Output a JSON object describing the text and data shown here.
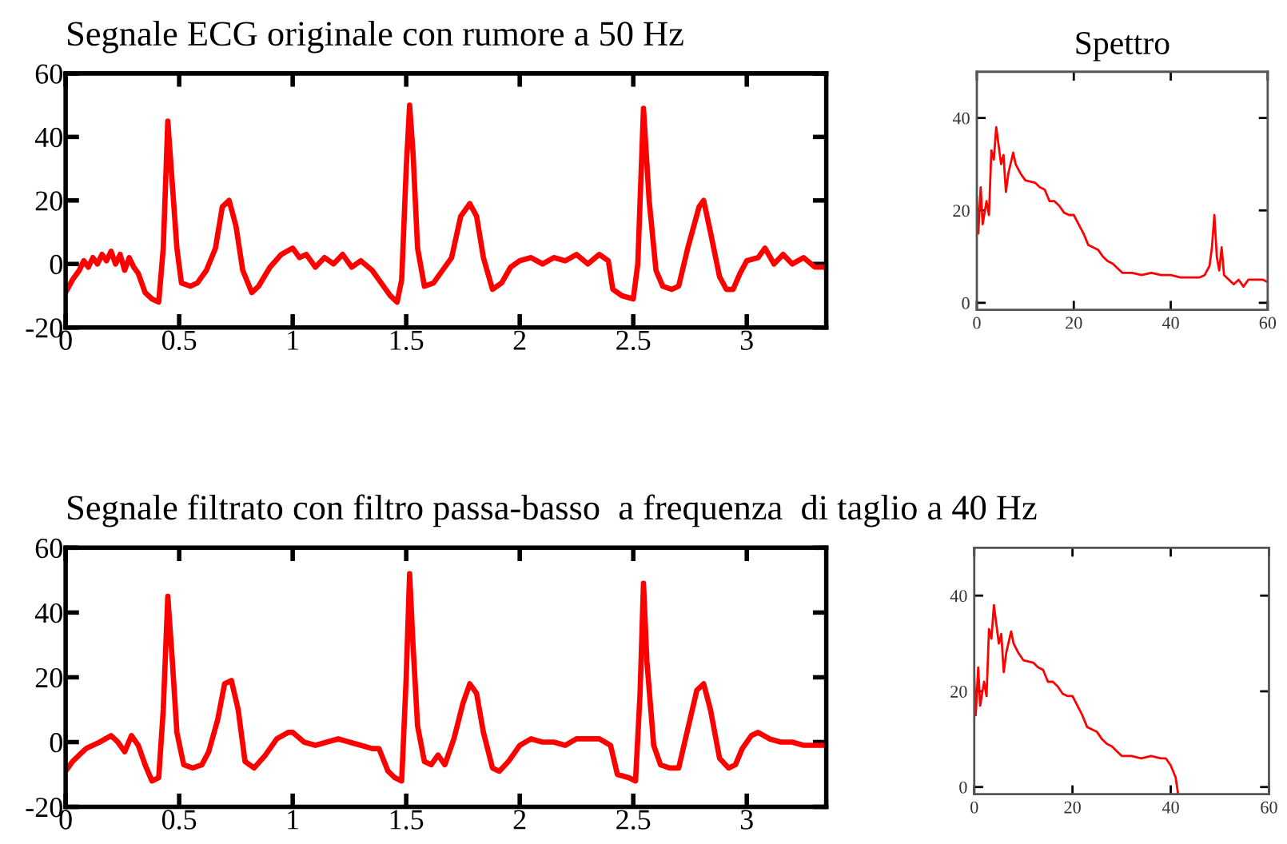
{
  "chart_data": [
    {
      "type": "line",
      "title": "Segnale ECG originale con rumore a 50 Hz",
      "xlim": [
        0,
        3.35
      ],
      "ylim": [
        -20,
        60
      ],
      "xticks": [
        0,
        0.5,
        1,
        1.5,
        2,
        2.5,
        3
      ],
      "yticks": [
        -20,
        0,
        20,
        40,
        60
      ],
      "grid": false,
      "legend": false,
      "marker": "none",
      "line_style": "solid",
      "series": [
        {
          "color": "#ff0000",
          "x": [
            0,
            0.03,
            0.06,
            0.08,
            0.1,
            0.12,
            0.14,
            0.16,
            0.18,
            0.2,
            0.22,
            0.24,
            0.26,
            0.28,
            0.3,
            0.32,
            0.35,
            0.38,
            0.41,
            0.43,
            0.45,
            0.47,
            0.49,
            0.51,
            0.55,
            0.58,
            0.62,
            0.66,
            0.69,
            0.72,
            0.75,
            0.78,
            0.82,
            0.85,
            0.9,
            0.95,
            1.0,
            1.03,
            1.06,
            1.1,
            1.14,
            1.18,
            1.22,
            1.26,
            1.3,
            1.35,
            1.4,
            1.43,
            1.46,
            1.48,
            1.5,
            1.515,
            1.53,
            1.55,
            1.58,
            1.62,
            1.65,
            1.7,
            1.74,
            1.78,
            1.81,
            1.84,
            1.88,
            1.92,
            1.96,
            2.0,
            2.05,
            2.1,
            2.15,
            2.2,
            2.25,
            2.3,
            2.35,
            2.39,
            2.41,
            2.45,
            2.5,
            2.52,
            2.545,
            2.57,
            2.6,
            2.63,
            2.67,
            2.7,
            2.74,
            2.79,
            2.81,
            2.84,
            2.88,
            2.91,
            2.94,
            2.97,
            3.0,
            3.05,
            3.08,
            3.12,
            3.16,
            3.2,
            3.25,
            3.3,
            3.35
          ],
          "values": [
            -9,
            -5,
            -2,
            1,
            -1,
            2,
            0,
            3,
            1,
            4,
            0,
            3,
            -2,
            2,
            -1,
            -3,
            -9,
            -11,
            -12,
            5,
            45,
            25,
            5,
            -6,
            -7,
            -6,
            -2,
            5,
            18,
            20,
            12,
            -2,
            -9,
            -7,
            -1,
            3,
            5,
            2,
            3,
            -1,
            2,
            0,
            3,
            -1,
            1,
            -2,
            -7,
            -10,
            -12,
            -5,
            30,
            50,
            35,
            5,
            -7,
            -6,
            -3,
            2,
            15,
            19,
            15,
            2,
            -8,
            -6,
            -1,
            1,
            2,
            0,
            2,
            1,
            3,
            0,
            3,
            1,
            -8,
            -10,
            -11,
            0,
            49,
            20,
            -2,
            -7,
            -8,
            -7,
            5,
            18,
            20,
            10,
            -4,
            -8,
            -8,
            -3,
            1,
            2,
            5,
            0,
            3,
            0,
            2,
            -1,
            -1
          ]
        }
      ]
    },
    {
      "type": "line",
      "title": "Spettro",
      "xlim": [
        0,
        60
      ],
      "ylim": [
        -1.5,
        50
      ],
      "xticks": [
        0,
        20,
        40,
        60
      ],
      "yticks": [
        0,
        20,
        40
      ],
      "grid": false,
      "legend": false,
      "marker": "none",
      "line_style": "solid",
      "series": [
        {
          "color": "#ff0000",
          "x": [
            0,
            0.3,
            0.8,
            1.2,
            2,
            2.5,
            3,
            3.5,
            4,
            4.5,
            5,
            5.5,
            6,
            6.5,
            7.5,
            8,
            9,
            10,
            12,
            13,
            14,
            15,
            16,
            17,
            18,
            19,
            20,
            21,
            22,
            23,
            24,
            25,
            26,
            27,
            28,
            29,
            30,
            32,
            34,
            36,
            38,
            40,
            42,
            44,
            46,
            47,
            48,
            48.5,
            49,
            49.5,
            50,
            50.5,
            51,
            52,
            53,
            54,
            55,
            56,
            58,
            59,
            60
          ],
          "values": [
            23,
            15,
            25,
            17,
            22,
            19,
            33,
            31,
            38,
            34,
            30,
            32,
            24,
            28,
            32.5,
            30,
            28,
            26.5,
            26,
            25,
            24.5,
            22,
            22,
            21,
            19.5,
            19,
            19,
            17,
            15,
            12.5,
            12,
            11.5,
            10,
            9,
            8.5,
            7.5,
            6.5,
            6.5,
            6,
            6.5,
            6,
            6,
            5.5,
            5.5,
            5.5,
            6,
            8,
            12,
            19,
            10,
            7,
            12,
            6,
            5,
            4,
            5,
            3.5,
            5,
            5,
            5,
            4.5
          ]
        }
      ]
    },
    {
      "type": "line",
      "title": "Segnale filtrato con filtro passa-basso  a frequenza  di taglio a 40 Hz",
      "xlim": [
        0,
        3.35
      ],
      "ylim": [
        -20,
        60
      ],
      "xticks": [
        0,
        0.5,
        1,
        1.5,
        2,
        2.5,
        3
      ],
      "yticks": [
        -20,
        0,
        20,
        40,
        60
      ],
      "grid": false,
      "legend": false,
      "marker": "none",
      "line_style": "solid",
      "series": [
        {
          "color": "#ff0000",
          "x": [
            0,
            0.03,
            0.06,
            0.09,
            0.12,
            0.15,
            0.2,
            0.23,
            0.26,
            0.29,
            0.32,
            0.35,
            0.38,
            0.41,
            0.43,
            0.45,
            0.47,
            0.49,
            0.52,
            0.56,
            0.6,
            0.63,
            0.67,
            0.7,
            0.73,
            0.76,
            0.79,
            0.83,
            0.88,
            0.93,
            0.98,
            1.0,
            1.05,
            1.1,
            1.15,
            1.2,
            1.25,
            1.3,
            1.35,
            1.38,
            1.42,
            1.45,
            1.48,
            1.5,
            1.515,
            1.53,
            1.55,
            1.58,
            1.61,
            1.64,
            1.67,
            1.71,
            1.75,
            1.78,
            1.81,
            1.84,
            1.88,
            1.91,
            1.95,
            2.0,
            2.05,
            2.1,
            2.15,
            2.2,
            2.25,
            2.3,
            2.35,
            2.4,
            2.43,
            2.48,
            2.51,
            2.53,
            2.545,
            2.56,
            2.59,
            2.62,
            2.66,
            2.7,
            2.74,
            2.78,
            2.81,
            2.84,
            2.88,
            2.92,
            2.95,
            2.98,
            3.02,
            3.05,
            3.1,
            3.15,
            3.2,
            3.25,
            3.3,
            3.35
          ],
          "values": [
            -9,
            -6,
            -4,
            -2,
            -1,
            0,
            2,
            0,
            -3,
            2,
            -1,
            -7,
            -12,
            -11,
            10,
            45,
            25,
            3,
            -7,
            -8,
            -7,
            -3,
            7,
            18,
            19,
            10,
            -6,
            -8,
            -4,
            1,
            3,
            3,
            0,
            -1,
            0,
            1,
            0,
            -1,
            -2,
            -2,
            -9,
            -11,
            -12,
            20,
            52,
            30,
            5,
            -6,
            -7,
            -4,
            -7,
            1,
            12,
            18,
            15,
            3,
            -8,
            -9,
            -6,
            -1,
            1,
            0,
            0,
            -1,
            1,
            1,
            1,
            -1,
            -10,
            -11,
            -12,
            15,
            49,
            25,
            -1,
            -7,
            -8,
            -8,
            4,
            16,
            18,
            10,
            -5,
            -8,
            -7,
            -2,
            2,
            3,
            1,
            0,
            0,
            -1,
            -1,
            -1
          ]
        }
      ]
    },
    {
      "type": "line",
      "xlim": [
        0,
        60
      ],
      "ylim": [
        -1.5,
        50
      ],
      "xticks": [
        0,
        20,
        40,
        60
      ],
      "yticks": [
        0,
        20,
        40
      ],
      "grid": false,
      "legend": false,
      "marker": "none",
      "line_style": "solid",
      "series": [
        {
          "color": "#ff0000",
          "x": [
            0,
            0.3,
            0.8,
            1.2,
            2,
            2.5,
            3,
            3.5,
            4,
            4.5,
            5,
            5.5,
            6,
            6.5,
            7.5,
            8,
            9,
            10,
            12,
            13,
            14,
            15,
            16,
            17,
            18,
            19,
            20,
            21,
            22,
            23,
            24,
            25,
            26,
            27,
            28,
            29,
            30,
            32,
            34,
            36,
            38,
            39,
            40,
            41,
            41.5
          ],
          "values": [
            23,
            15,
            25,
            17,
            22,
            19,
            33,
            31,
            38,
            34,
            30,
            32,
            24,
            28,
            32.5,
            30,
            28,
            26.5,
            26,
            25,
            24.5,
            22,
            22,
            21,
            19.5,
            19,
            19,
            17,
            15,
            12.5,
            12,
            11.5,
            10,
            9,
            8.5,
            7.5,
            6.5,
            6.5,
            6,
            6.5,
            6,
            6,
            4.5,
            2,
            -1.5
          ]
        }
      ]
    }
  ]
}
